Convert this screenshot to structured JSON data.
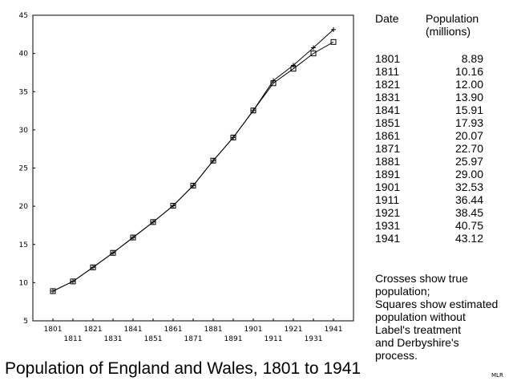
{
  "chart_data": {
    "type": "line",
    "title": "Population of England and Wales, 1801 to 1941",
    "x": [
      1801,
      1811,
      1821,
      1831,
      1841,
      1851,
      1861,
      1871,
      1881,
      1891,
      1901,
      1911,
      1921,
      1931,
      1941
    ],
    "series": [
      {
        "name": "Crosses show true population",
        "marker": "cross",
        "values": [
          8.89,
          10.16,
          12.0,
          13.9,
          15.91,
          17.93,
          20.07,
          22.7,
          25.97,
          29.0,
          32.53,
          36.44,
          38.45,
          40.75,
          43.12
        ]
      },
      {
        "name": "Squares show estimated population without Label's treatment and Derbyshire's process",
        "marker": "square",
        "values": [
          8.89,
          10.16,
          12.0,
          13.9,
          15.91,
          17.93,
          20.07,
          22.7,
          25.97,
          29.0,
          32.53,
          36.1,
          38.0,
          40.0,
          41.5
        ]
      }
    ],
    "xlim": [
      1791,
      1951
    ],
    "ylim": [
      5,
      45
    ],
    "x_ticks": [
      "1801",
      "1811",
      "1821",
      "1831",
      "1841",
      "1851",
      "1861",
      "1871",
      "1881",
      "1891",
      "1901",
      "1911",
      "1921",
      "1931",
      "1941"
    ],
    "y_ticks": [
      "5",
      "10",
      "15",
      "20",
      "25",
      "30",
      "35",
      "40",
      "45"
    ],
    "grid": false,
    "line_color": "#000000"
  },
  "title": "Population of England and Wales, 1801 to 1941",
  "table": {
    "header_date": "Date",
    "header_pop_1": "Population",
    "header_pop_2": "(millions)",
    "rows": [
      {
        "date": "1801",
        "pop": "8.89"
      },
      {
        "date": "1811",
        "pop": "10.16"
      },
      {
        "date": "1821",
        "pop": "12.00"
      },
      {
        "date": "1831",
        "pop": "13.90"
      },
      {
        "date": "1841",
        "pop": "15.91"
      },
      {
        "date": "1851",
        "pop": "17.93"
      },
      {
        "date": "1861",
        "pop": "20.07"
      },
      {
        "date": "1871",
        "pop": "22.70"
      },
      {
        "date": "1881",
        "pop": "25.97"
      },
      {
        "date": "1891",
        "pop": "29.00"
      },
      {
        "date": "1901",
        "pop": "32.53"
      },
      {
        "date": "1911",
        "pop": "36.44"
      },
      {
        "date": "1921",
        "pop": "38.45"
      },
      {
        "date": "1931",
        "pop": "40.75"
      },
      {
        "date": "1941",
        "pop": "43.12"
      }
    ]
  },
  "note": {
    "line1": "Crosses show true",
    "line2": "population;",
    "line3": "Squares show estimated",
    "line4": "population without",
    "line5": "Label's treatment",
    "line6": "and Derbyshire's",
    "line7": "process."
  },
  "credit": "MLR"
}
